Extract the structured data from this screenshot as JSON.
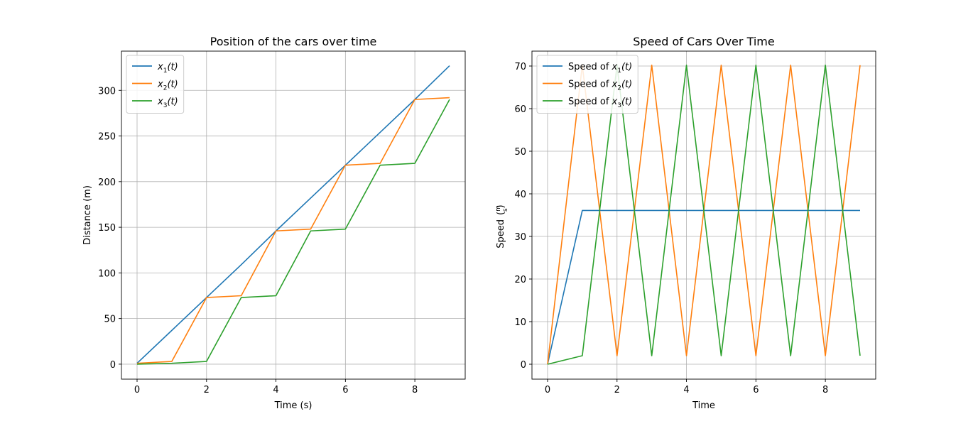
{
  "colors": {
    "series1": "#1f77b4",
    "series2": "#ff7f0e",
    "series3": "#2ca02c"
  },
  "chart_data": [
    {
      "type": "line",
      "title": "Position of the cars over time",
      "xlabel": "Time (s)",
      "ylabel": "Distance (m)",
      "xlim": [
        -0.45,
        9.45
      ],
      "ylim": [
        -16.4,
        343
      ],
      "xticks": [
        0,
        2,
        4,
        6,
        8
      ],
      "yticks": [
        0,
        50,
        100,
        150,
        200,
        250,
        300
      ],
      "grid": true,
      "legend_position": "top-left",
      "series": [
        {
          "name": "x₁(t)",
          "name_base": "x",
          "name_sub": "1",
          "name_suffix": "(t)",
          "color": "#1f77b4",
          "x": [
            0,
            1,
            2,
            3,
            4,
            5,
            6,
            7,
            8,
            9
          ],
          "y": [
            1,
            37,
            73,
            109,
            146,
            182,
            218,
            254,
            290,
            327
          ]
        },
        {
          "name": "x₂(t)",
          "name_base": "x",
          "name_sub": "2",
          "name_suffix": "(t)",
          "color": "#ff7f0e",
          "x": [
            0,
            1,
            2,
            3,
            4,
            5,
            6,
            7,
            8,
            9
          ],
          "y": [
            1,
            3,
            73,
            75,
            146,
            148,
            218,
            220,
            290,
            292
          ]
        },
        {
          "name": "x₃(t)",
          "name_base": "x",
          "name_sub": "3",
          "name_suffix": "(t)",
          "color": "#2ca02c",
          "x": [
            0,
            1,
            2,
            3,
            4,
            5,
            6,
            7,
            8,
            9
          ],
          "y": [
            0,
            1,
            3,
            73,
            75,
            146,
            148,
            218,
            220,
            290
          ]
        }
      ]
    },
    {
      "type": "line",
      "title": "Speed of Cars Over Time",
      "xlabel": "Time",
      "ylabel": "Speed",
      "ylabel_unit": "(m/s)",
      "xlim": [
        -0.45,
        9.45
      ],
      "ylim": [
        -3.5,
        73.5
      ],
      "xticks": [
        0,
        2,
        4,
        6,
        8
      ],
      "yticks": [
        0,
        10,
        20,
        30,
        40,
        50,
        60,
        70
      ],
      "grid": true,
      "legend_position": "top-left",
      "series": [
        {
          "name": "Speed of x₁(t)",
          "name_base": "Speed of x",
          "name_sub": "1",
          "name_suffix": "(t)",
          "color": "#1f77b4",
          "x": [
            0,
            1,
            2,
            3,
            4,
            5,
            6,
            7,
            8,
            9
          ],
          "y": [
            0,
            36.1,
            36.1,
            36.1,
            36.1,
            36.1,
            36.1,
            36.1,
            36.1,
            36.1
          ]
        },
        {
          "name": "Speed of x₂(t)",
          "name_base": "Speed of x",
          "name_sub": "2",
          "name_suffix": "(t)",
          "color": "#ff7f0e",
          "x": [
            0,
            1,
            2,
            3,
            4,
            5,
            6,
            7,
            8,
            9
          ],
          "y": [
            0,
            70.2,
            2,
            70.2,
            2,
            70.2,
            2,
            70.2,
            2,
            70.2
          ]
        },
        {
          "name": "Speed of x₃(t)",
          "name_base": "Speed of x",
          "name_sub": "3",
          "name_suffix": "(t)",
          "color": "#2ca02c",
          "x": [
            0,
            1,
            2,
            3,
            4,
            5,
            6,
            7,
            8,
            9
          ],
          "y": [
            0,
            2,
            70.2,
            2,
            70.2,
            2,
            70.2,
            2,
            70.2,
            2
          ]
        }
      ]
    }
  ]
}
